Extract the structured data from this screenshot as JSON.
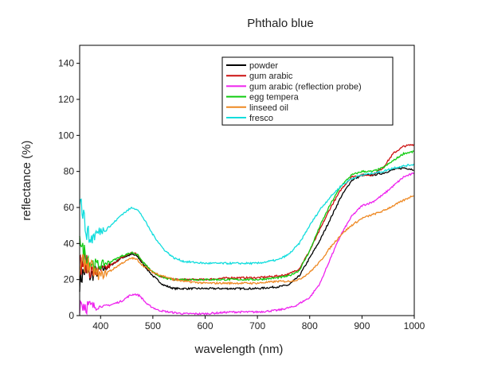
{
  "chart_data": {
    "type": "line",
    "title": "Phthalo blue",
    "xlabel": "wavelength (nm)",
    "ylabel": "reflectance (%)",
    "xlim": [
      360,
      1000
    ],
    "ylim": [
      0,
      150
    ],
    "xticks": [
      400,
      500,
      600,
      700,
      800,
      900,
      1000
    ],
    "yticks": [
      0,
      20,
      40,
      60,
      80,
      100,
      120,
      140
    ],
    "xtick_labels": [
      "400",
      "500",
      "600",
      "700",
      "800",
      "900",
      "1000"
    ],
    "ytick_labels": [
      "0",
      "20",
      "40",
      "60",
      "80",
      "100",
      "120",
      "140"
    ],
    "grid": false,
    "legend_position": "top-right",
    "series": [
      {
        "name": "powder",
        "color": "#000000",
        "noise_below": 420,
        "points": [
          [
            360,
            20
          ],
          [
            370,
            25
          ],
          [
            380,
            22
          ],
          [
            390,
            24
          ],
          [
            400,
            25
          ],
          [
            420,
            28
          ],
          [
            440,
            32
          ],
          [
            460,
            34
          ],
          [
            470,
            33
          ],
          [
            480,
            29
          ],
          [
            500,
            22
          ],
          [
            520,
            17
          ],
          [
            540,
            15
          ],
          [
            560,
            15
          ],
          [
            600,
            15
          ],
          [
            650,
            15
          ],
          [
            700,
            15
          ],
          [
            740,
            16
          ],
          [
            760,
            17
          ],
          [
            780,
            22
          ],
          [
            800,
            32
          ],
          [
            820,
            42
          ],
          [
            840,
            54
          ],
          [
            860,
            66
          ],
          [
            880,
            75
          ],
          [
            900,
            78
          ],
          [
            920,
            78
          ],
          [
            940,
            79
          ],
          [
            960,
            81
          ],
          [
            980,
            82
          ],
          [
            1000,
            81
          ]
        ]
      },
      {
        "name": "gum arabic",
        "color": "#cc1111",
        "noise_below": 420,
        "points": [
          [
            360,
            28
          ],
          [
            370,
            30
          ],
          [
            380,
            25
          ],
          [
            390,
            24
          ],
          [
            400,
            25
          ],
          [
            420,
            28
          ],
          [
            440,
            32
          ],
          [
            460,
            35
          ],
          [
            470,
            34
          ],
          [
            480,
            30
          ],
          [
            500,
            24
          ],
          [
            520,
            21
          ],
          [
            540,
            20
          ],
          [
            560,
            20
          ],
          [
            600,
            20
          ],
          [
            650,
            21
          ],
          [
            700,
            21
          ],
          [
            740,
            22
          ],
          [
            760,
            23
          ],
          [
            780,
            26
          ],
          [
            800,
            36
          ],
          [
            820,
            48
          ],
          [
            840,
            60
          ],
          [
            860,
            70
          ],
          [
            880,
            77
          ],
          [
            900,
            78
          ],
          [
            920,
            78
          ],
          [
            940,
            82
          ],
          [
            960,
            90
          ],
          [
            980,
            94
          ],
          [
            1000,
            95
          ]
        ]
      },
      {
        "name": "gum arabic (reflection probe)",
        "color": "#ee22ee",
        "noise_below": 400,
        "points": [
          [
            360,
            8
          ],
          [
            370,
            6
          ],
          [
            380,
            5
          ],
          [
            400,
            5
          ],
          [
            420,
            6
          ],
          [
            440,
            8
          ],
          [
            455,
            11
          ],
          [
            465,
            12
          ],
          [
            475,
            11
          ],
          [
            490,
            6
          ],
          [
            510,
            3
          ],
          [
            530,
            2
          ],
          [
            560,
            1
          ],
          [
            600,
            1
          ],
          [
            650,
            2
          ],
          [
            700,
            2
          ],
          [
            740,
            3
          ],
          [
            770,
            5
          ],
          [
            800,
            10
          ],
          [
            820,
            18
          ],
          [
            840,
            32
          ],
          [
            860,
            45
          ],
          [
            880,
            55
          ],
          [
            900,
            61
          ],
          [
            920,
            63
          ],
          [
            940,
            67
          ],
          [
            960,
            72
          ],
          [
            980,
            77
          ],
          [
            1000,
            79
          ]
        ]
      },
      {
        "name": "egg tempera",
        "color": "#11cc11",
        "noise_below": 420,
        "points": [
          [
            360,
            48
          ],
          [
            365,
            35
          ],
          [
            370,
            35
          ],
          [
            380,
            30
          ],
          [
            390,
            28
          ],
          [
            400,
            28
          ],
          [
            420,
            30
          ],
          [
            440,
            33
          ],
          [
            460,
            35
          ],
          [
            470,
            34
          ],
          [
            480,
            30
          ],
          [
            500,
            24
          ],
          [
            520,
            21
          ],
          [
            540,
            20
          ],
          [
            560,
            20
          ],
          [
            600,
            20
          ],
          [
            650,
            20
          ],
          [
            700,
            20
          ],
          [
            740,
            21
          ],
          [
            760,
            22
          ],
          [
            780,
            25
          ],
          [
            800,
            36
          ],
          [
            820,
            50
          ],
          [
            840,
            62
          ],
          [
            860,
            72
          ],
          [
            880,
            78
          ],
          [
            900,
            80
          ],
          [
            920,
            80
          ],
          [
            940,
            82
          ],
          [
            960,
            86
          ],
          [
            980,
            90
          ],
          [
            1000,
            91
          ]
        ]
      },
      {
        "name": "linseed oil",
        "color": "#ee8822",
        "noise_below": 420,
        "points": [
          [
            360,
            25
          ],
          [
            370,
            30
          ],
          [
            380,
            27
          ],
          [
            390,
            24
          ],
          [
            400,
            22
          ],
          [
            420,
            25
          ],
          [
            440,
            29
          ],
          [
            460,
            32
          ],
          [
            470,
            31
          ],
          [
            480,
            28
          ],
          [
            500,
            24
          ],
          [
            520,
            22
          ],
          [
            540,
            20
          ],
          [
            560,
            19
          ],
          [
            600,
            18
          ],
          [
            650,
            18
          ],
          [
            700,
            18
          ],
          [
            740,
            19
          ],
          [
            760,
            19
          ],
          [
            780,
            20
          ],
          [
            800,
            24
          ],
          [
            820,
            30
          ],
          [
            840,
            38
          ],
          [
            860,
            45
          ],
          [
            880,
            50
          ],
          [
            900,
            54
          ],
          [
            920,
            56
          ],
          [
            940,
            58
          ],
          [
            960,
            61
          ],
          [
            980,
            64
          ],
          [
            1000,
            67
          ]
        ]
      },
      {
        "name": "fresco",
        "color": "#11dddd",
        "noise_below": 420,
        "points": [
          [
            360,
            65
          ],
          [
            365,
            60
          ],
          [
            370,
            50
          ],
          [
            380,
            42
          ],
          [
            390,
            45
          ],
          [
            400,
            47
          ],
          [
            420,
            50
          ],
          [
            440,
            56
          ],
          [
            460,
            60
          ],
          [
            470,
            59
          ],
          [
            480,
            55
          ],
          [
            500,
            45
          ],
          [
            520,
            37
          ],
          [
            540,
            32
          ],
          [
            560,
            30
          ],
          [
            600,
            29
          ],
          [
            650,
            29
          ],
          [
            700,
            29
          ],
          [
            740,
            31
          ],
          [
            760,
            34
          ],
          [
            780,
            40
          ],
          [
            800,
            50
          ],
          [
            820,
            59
          ],
          [
            840,
            66
          ],
          [
            860,
            72
          ],
          [
            880,
            76
          ],
          [
            900,
            78
          ],
          [
            920,
            79
          ],
          [
            940,
            80
          ],
          [
            960,
            82
          ],
          [
            980,
            83
          ],
          [
            1000,
            84
          ]
        ]
      }
    ]
  }
}
